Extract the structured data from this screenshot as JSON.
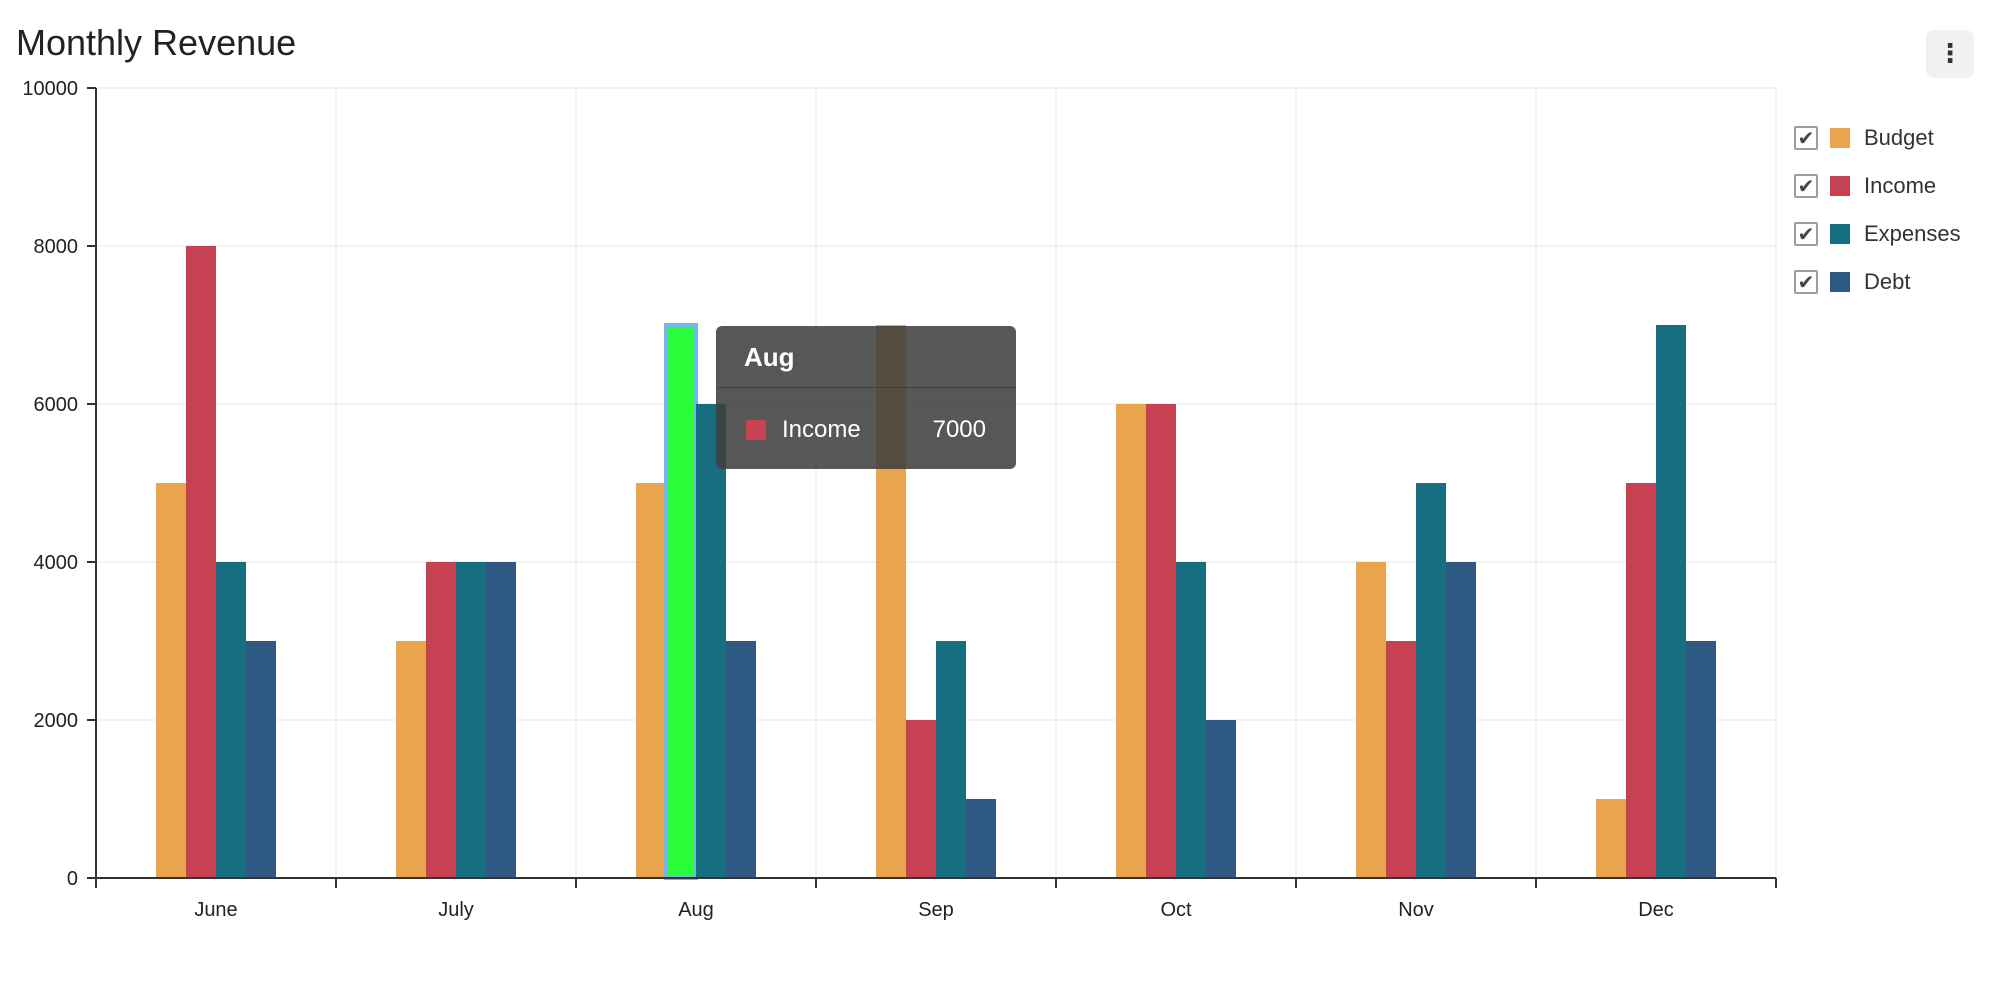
{
  "title": "Monthly Revenue",
  "menu": {
    "icon": "more-vertical-icon",
    "glyph": "⋮"
  },
  "legend": [
    {
      "label": "Budget",
      "checked": true,
      "color": "#e8a54b"
    },
    {
      "label": "Income",
      "checked": true,
      "color": "#c64152"
    },
    {
      "label": "Expenses",
      "checked": true,
      "color": "#176e80"
    },
    {
      "label": "Debt",
      "checked": true,
      "color": "#2e5982"
    }
  ],
  "tooltip": {
    "title": "Aug",
    "series": "Income",
    "value": "7000",
    "color": "#c64152"
  },
  "highlight": {
    "category": "Aug",
    "series": "Income",
    "fill": "#2bff3c",
    "border": "#6fb8e8"
  },
  "chart_data": {
    "type": "bar",
    "title": "Monthly Revenue",
    "categories": [
      "June",
      "July",
      "Aug",
      "Sep",
      "Oct",
      "Nov",
      "Dec"
    ],
    "series": [
      {
        "name": "Budget",
        "color": "#e8a54b",
        "values": [
          5000,
          3000,
          5000,
          7000,
          6000,
          4000,
          1000
        ]
      },
      {
        "name": "Income",
        "color": "#c64152",
        "values": [
          8000,
          4000,
          7000,
          2000,
          6000,
          3000,
          5000
        ]
      },
      {
        "name": "Expenses",
        "color": "#176e80",
        "values": [
          4000,
          4000,
          6000,
          3000,
          4000,
          5000,
          7000
        ]
      },
      {
        "name": "Debt",
        "color": "#2e5982",
        "values": [
          3000,
          4000,
          3000,
          1000,
          2000,
          4000,
          3000
        ]
      }
    ],
    "yticks": [
      "0",
      "2000",
      "4000",
      "6000",
      "8000",
      "10000"
    ],
    "ylim": [
      0,
      10000
    ],
    "grid": true,
    "legend_position": "right"
  }
}
